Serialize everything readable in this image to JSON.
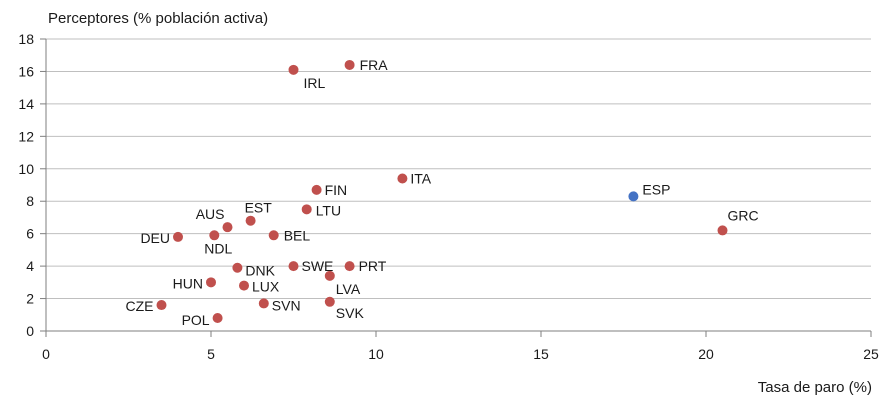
{
  "chart_data": {
    "type": "scatter",
    "title": "",
    "ylabel": "Perceptores (% población activa)",
    "xlabel": "Tasa de paro (%)",
    "xlim": [
      0,
      25
    ],
    "ylim": [
      0,
      18
    ],
    "x_ticks": [
      "0",
      "5",
      "10",
      "15",
      "20",
      "25"
    ],
    "y_ticks": [
      "0",
      "2",
      "4",
      "6",
      "8",
      "10",
      "12",
      "14",
      "16",
      "18"
    ],
    "grid": "horizontal",
    "colors": {
      "default": "#c0504d",
      "highlight": "#4472c4"
    },
    "points": [
      {
        "label": "FRA",
        "x": 9.2,
        "y": 16.4
      },
      {
        "label": "IRL",
        "x": 7.5,
        "y": 16.1
      },
      {
        "label": "ITA",
        "x": 10.8,
        "y": 9.4
      },
      {
        "label": "ESP",
        "x": 17.8,
        "y": 8.3,
        "highlight": true
      },
      {
        "label": "FIN",
        "x": 8.2,
        "y": 8.7
      },
      {
        "label": "LTU",
        "x": 7.9,
        "y": 7.5
      },
      {
        "label": "EST",
        "x": 6.2,
        "y": 6.8
      },
      {
        "label": "AUS",
        "x": 5.5,
        "y": 6.4
      },
      {
        "label": "GRC",
        "x": 20.5,
        "y": 6.2
      },
      {
        "label": "BEL",
        "x": 6.9,
        "y": 5.9
      },
      {
        "label": "NDL",
        "x": 5.1,
        "y": 5.9
      },
      {
        "label": "DEU",
        "x": 4.0,
        "y": 5.8
      },
      {
        "label": "DNK",
        "x": 5.8,
        "y": 3.9
      },
      {
        "label": "SWE",
        "x": 7.5,
        "y": 4.0
      },
      {
        "label": "PRT",
        "x": 9.2,
        "y": 4.0
      },
      {
        "label": "LVA",
        "x": 8.6,
        "y": 3.4
      },
      {
        "label": "HUN",
        "x": 5.0,
        "y": 3.0
      },
      {
        "label": "LUX",
        "x": 6.0,
        "y": 2.8
      },
      {
        "label": "SVN",
        "x": 6.6,
        "y": 1.7
      },
      {
        "label": "SVK",
        "x": 8.6,
        "y": 1.8
      },
      {
        "label": "CZE",
        "x": 3.5,
        "y": 1.6
      },
      {
        "label": "POL",
        "x": 5.2,
        "y": 0.8
      }
    ]
  }
}
